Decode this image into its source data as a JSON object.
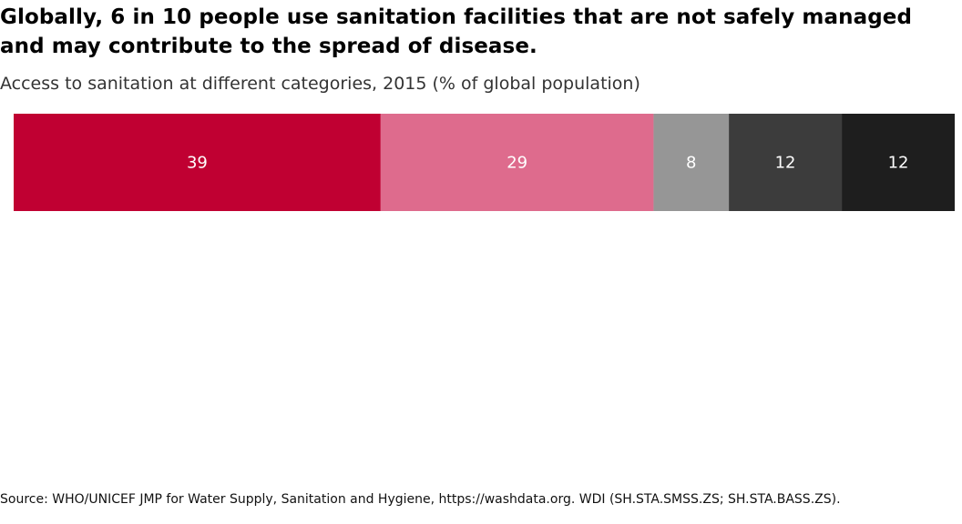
{
  "title": "Globally, 6 in 10 people use sanitation facilities that are not safely managed and may contribute to the spread of disease.",
  "subtitle": "Access to sanitation at different categories, 2015 (% of global population)",
  "source": "Source: WHO/UNICEF JMP for Water Supply, Sanitation and Hygiene, https://washdata.org. WDI (SH.STA.SMSS.ZS; SH.STA.BASS.ZS).",
  "chart_data": {
    "type": "bar",
    "orientation": "horizontal",
    "stacked": true,
    "title": "Globally, 6 in 10 people use sanitation facilities that are not safely managed and may contribute to the spread of disease.",
    "subtitle": "Access to sanitation at different categories, 2015 (% of global population)",
    "xlim": [
      0,
      100
    ],
    "grid": false,
    "legend": "none",
    "series": [
      {
        "value": 39,
        "label": "39",
        "color": "#c00032"
      },
      {
        "value": 29,
        "label": "29",
        "color": "#de6b8d"
      },
      {
        "value": 8,
        "label": "8",
        "color": "#969696"
      },
      {
        "value": 12,
        "label": "12",
        "color": "#3c3c3c"
      },
      {
        "value": 12,
        "label": "12",
        "color": "#1e1e1e"
      }
    ]
  }
}
